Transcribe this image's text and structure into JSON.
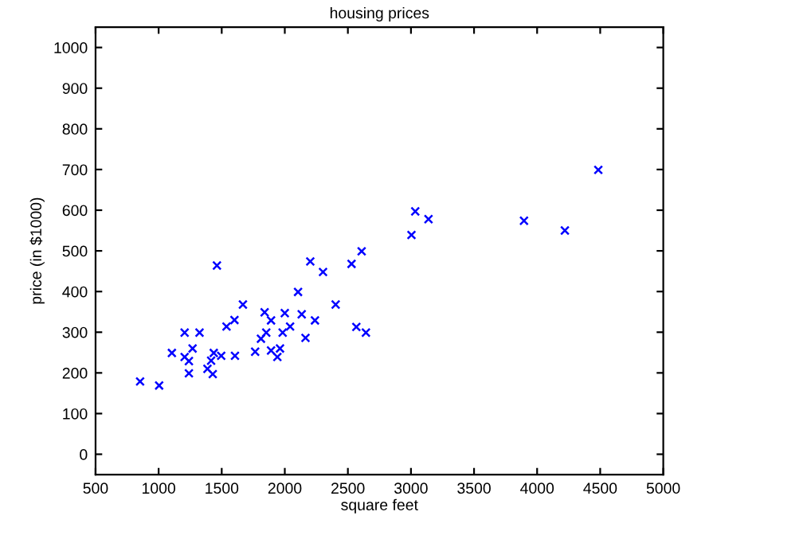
{
  "chart_data": {
    "type": "scatter",
    "title": "housing prices",
    "xlabel": "square feet",
    "ylabel": "price (in $1000)",
    "xlim": [
      500,
      5000
    ],
    "xticks": [
      500,
      1000,
      1500,
      2000,
      2500,
      3000,
      3500,
      4000,
      4500,
      5000
    ],
    "ylim": [
      -50,
      1050
    ],
    "yticks": [
      0,
      100,
      200,
      300,
      400,
      500,
      600,
      700,
      800,
      900,
      1000
    ],
    "grid": false,
    "marker": "cross",
    "series": [
      {
        "color": "#0000ff",
        "x": [
          853,
          1004,
          1105,
          1206,
          1206,
          1240,
          1240,
          1269,
          1324,
          1387,
          1416,
          1429,
          1437,
          1462,
          1496,
          1538,
          1601,
          1605,
          1668,
          1765,
          1811,
          1840,
          1853,
          1891,
          1891,
          1941,
          1962,
          1983,
          2000,
          2042,
          2105,
          2134,
          2164,
          2202,
          2239,
          2303,
          2403,
          2529,
          2567,
          2609,
          2643,
          3004,
          3034,
          3139,
          3896,
          4220,
          4485
        ],
        "values": [
          179,
          169,
          249,
          299,
          239,
          229,
          199,
          260,
          299,
          210,
          230,
          197,
          249,
          464,
          242,
          314,
          330,
          242,
          368,
          252,
          284,
          349,
          299,
          329,
          255,
          239,
          260,
          299,
          347,
          314,
          399,
          344,
          286,
          474,
          329,
          448,
          368,
          468,
          313,
          499,
          299,
          539,
          597,
          578,
          574,
          550,
          699
        ]
      }
    ]
  }
}
